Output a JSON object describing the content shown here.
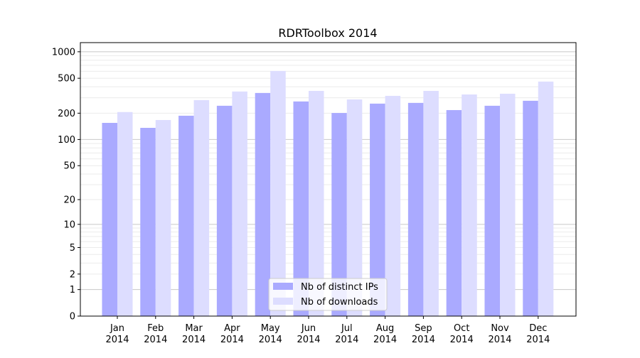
{
  "chart_data": {
    "type": "bar",
    "title": "RDRToolbox 2014",
    "xlabel": "",
    "ylabel": "",
    "y_scale": "log10(y+1)",
    "ylim": [
      0,
      1270
    ],
    "y_ticks": [
      0,
      1,
      2,
      5,
      10,
      20,
      50,
      100,
      200,
      500,
      1000
    ],
    "grid": "major and minor horizontal",
    "legend_position": "bottom-center",
    "categories": [
      "Jan\n2014",
      "Feb\n2014",
      "Mar\n2014",
      "Apr\n2014",
      "May\n2014",
      "Jun\n2014",
      "Jul\n2014",
      "Aug\n2014",
      "Sep\n2014",
      "Oct\n2014",
      "Nov\n2014",
      "Dec\n2014"
    ],
    "series": [
      {
        "name": "Nb of distinct IPs",
        "color": "#aaaaff",
        "values": [
          155,
          136,
          187,
          243,
          340,
          272,
          201,
          257,
          262,
          217,
          243,
          277
        ]
      },
      {
        "name": "Nb of downloads",
        "color": "#ddddff",
        "values": [
          206,
          167,
          282,
          353,
          605,
          359,
          287,
          315,
          359,
          327,
          333,
          458
        ]
      }
    ]
  }
}
